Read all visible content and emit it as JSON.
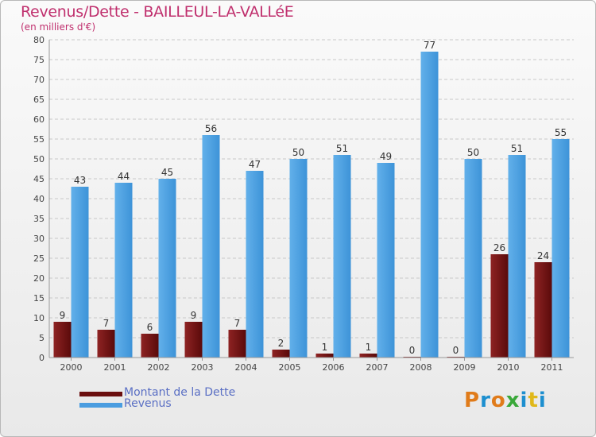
{
  "title": "Revenus/Dette - BAILLEUL-LA-VALLéE",
  "subtitle": "(en milliers d'€)",
  "colors": {
    "dette": "#7a1515",
    "revenus": "#55a4e2",
    "title": "#c0306e"
  },
  "legend": [
    {
      "label": "Montant de la Dette",
      "color": "#6b0f0f"
    },
    {
      "label": "Revenus",
      "color": "#4a9de0"
    }
  ],
  "logo": {
    "text": "Proxiti",
    "letters": [
      "P",
      "r",
      "o",
      "x",
      "i",
      "t",
      "i"
    ]
  },
  "chart_data": {
    "type": "bar",
    "categories": [
      "2000",
      "2001",
      "2002",
      "2003",
      "2004",
      "2005",
      "2006",
      "2007",
      "2008",
      "2009",
      "2010",
      "2011"
    ],
    "series": [
      {
        "name": "Montant de la Dette",
        "values": [
          9,
          7,
          6,
          9,
          7,
          2,
          1,
          1,
          0,
          0,
          26,
          24
        ]
      },
      {
        "name": "Revenus",
        "values": [
          43,
          44,
          45,
          56,
          47,
          50,
          51,
          49,
          77,
          50,
          51,
          55
        ]
      }
    ],
    "ylim": [
      0,
      80
    ],
    "yticks": [
      0,
      5,
      10,
      15,
      20,
      25,
      30,
      35,
      40,
      45,
      50,
      55,
      60,
      65,
      70,
      75,
      80
    ],
    "grid": true,
    "legend_position": "bottom-left"
  }
}
